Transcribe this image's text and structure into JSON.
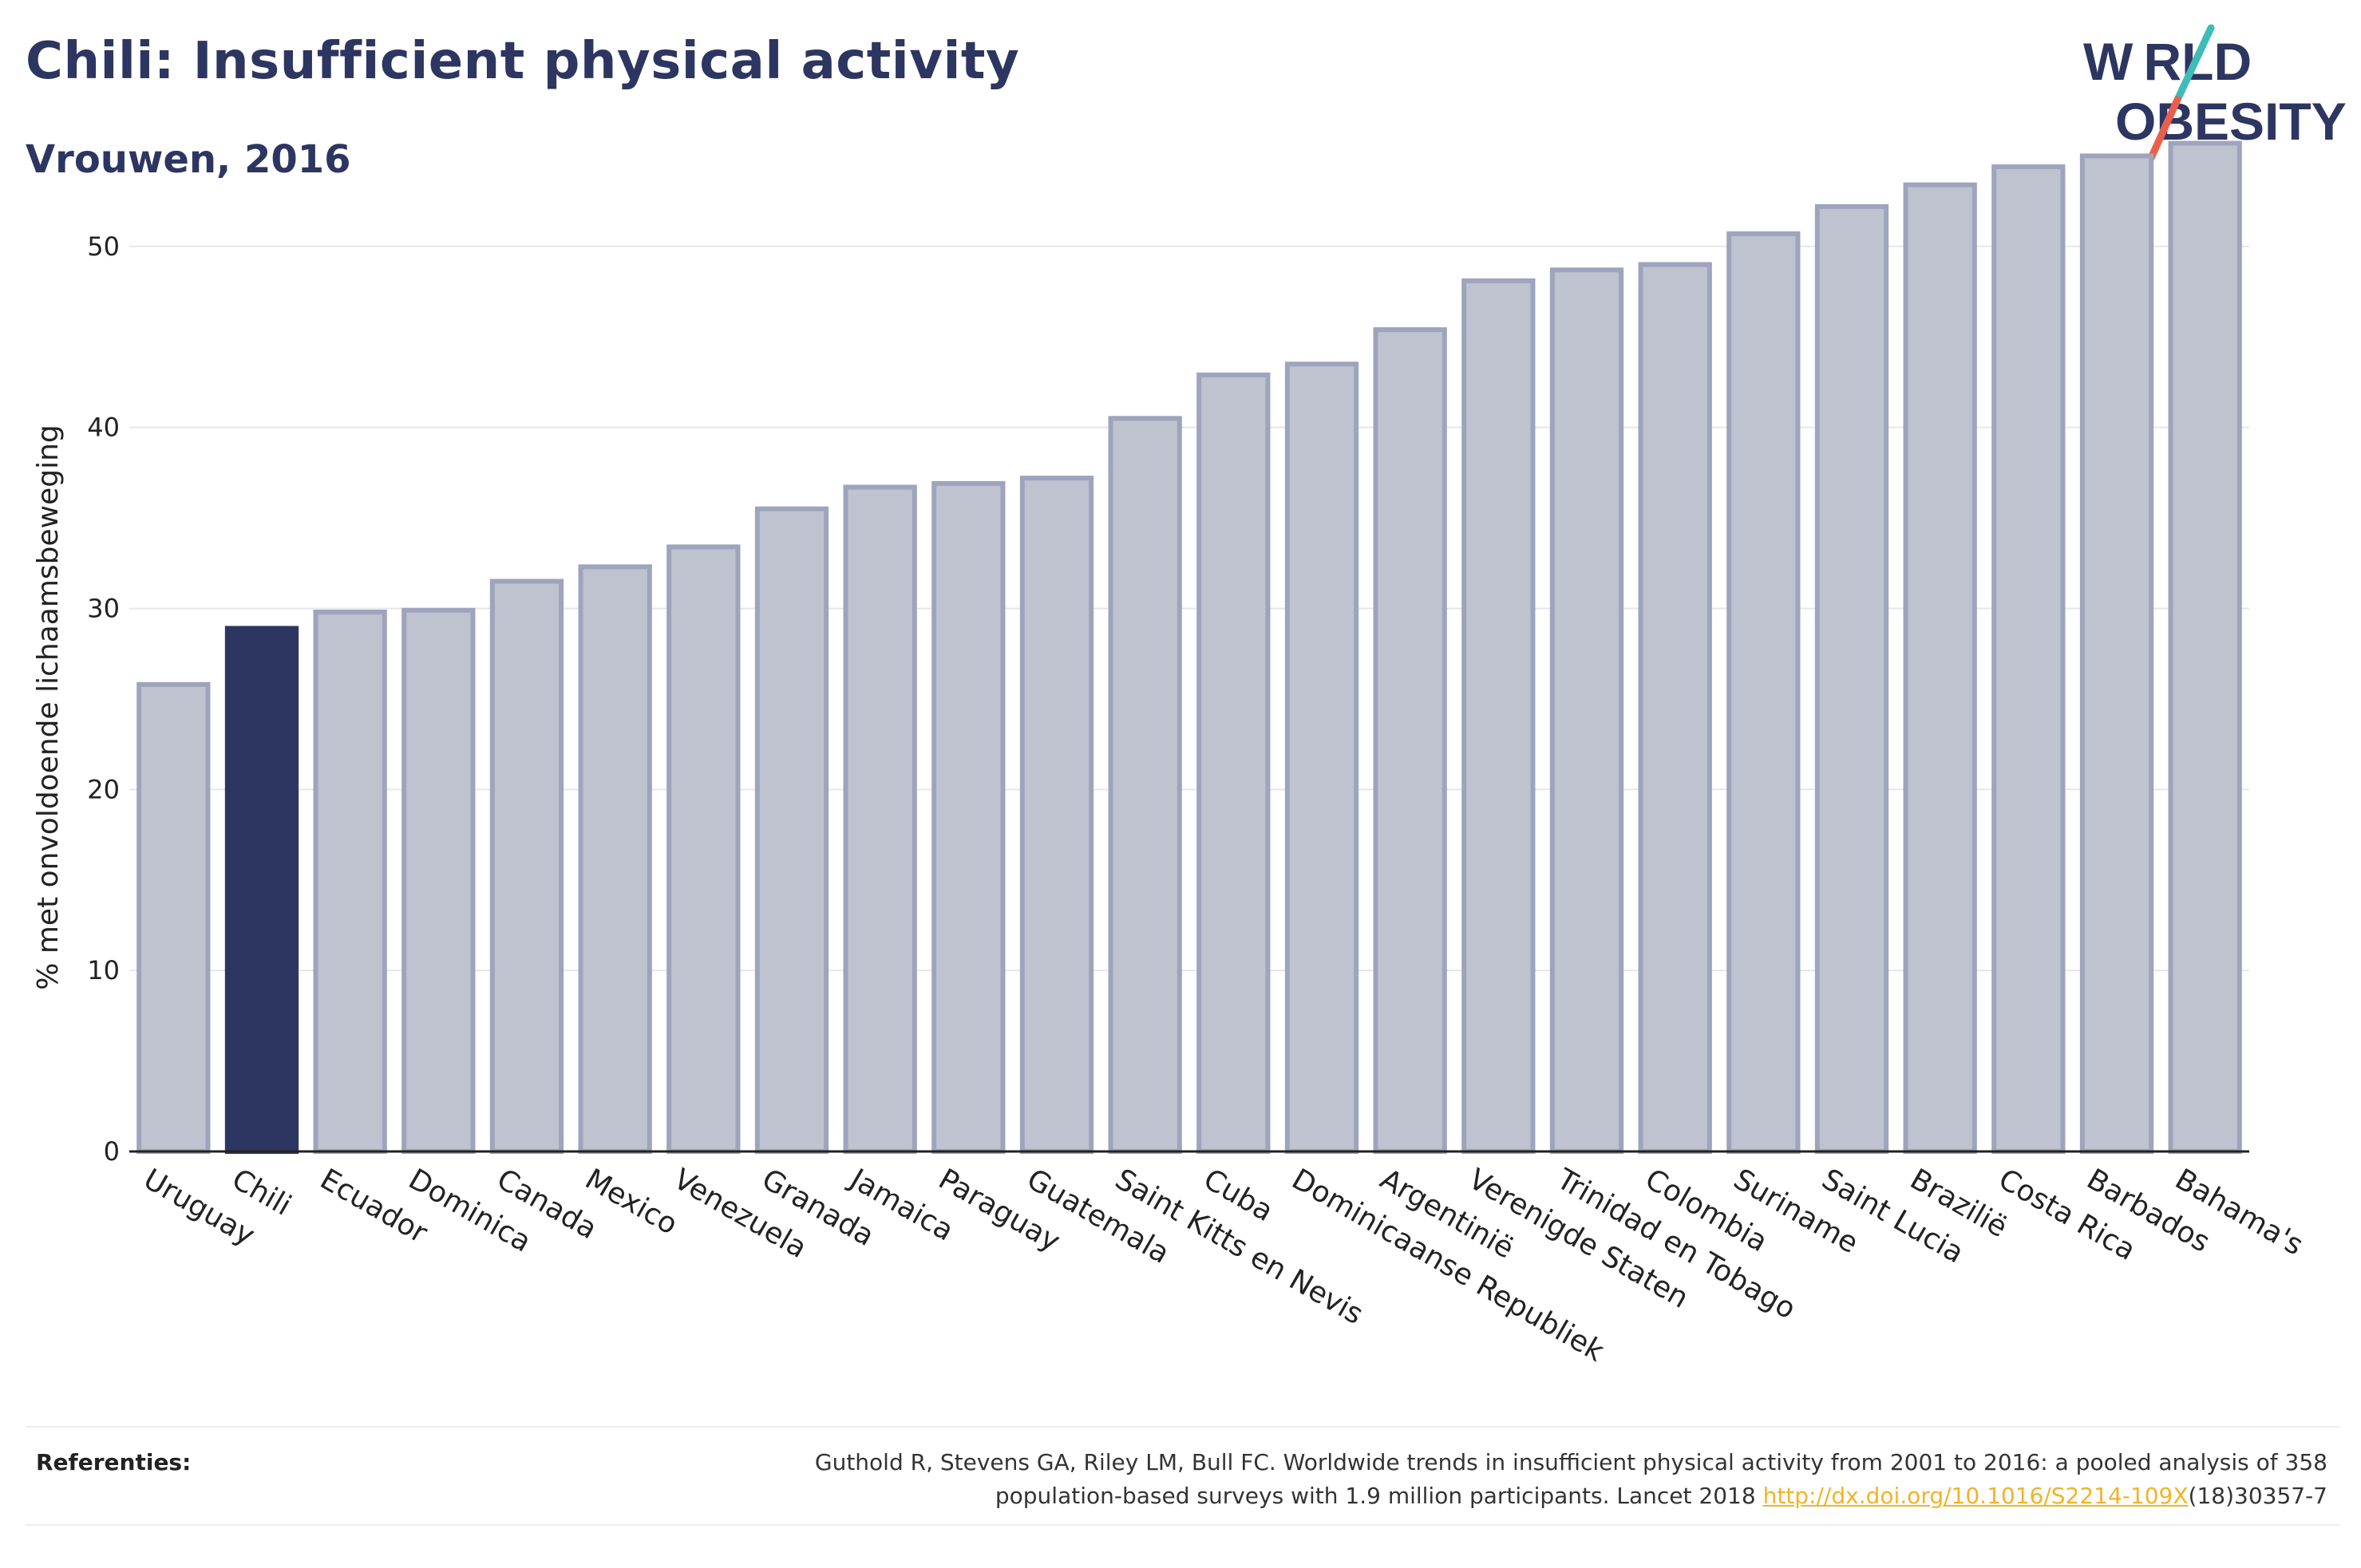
{
  "header": {
    "title": "Chili: Insufficient physical activity",
    "subtitle": "Vrouwen, 2016"
  },
  "logo": {
    "line1": "W RLD",
    "line2": "OBESITY",
    "text": "WORLD OBESITY",
    "colors": {
      "text": "#2d3561",
      "slash_top": "#3dbdb5",
      "slash_bottom": "#e8604c"
    }
  },
  "chart_data": {
    "type": "bar",
    "ylabel": "% met onvoldoende lichaamsbeweging",
    "ylim": [
      0,
      57
    ],
    "yticks": [
      0,
      10,
      20,
      30,
      40,
      50
    ],
    "grid": true,
    "highlight": "Chili",
    "colors": {
      "bar": "#bfc2cf",
      "bar_edge": "#9fa4bd",
      "highlight": "#2d3561",
      "grid": "#e6e6ec"
    },
    "categories": [
      "Uruguay",
      "Chili",
      "Ecuador",
      "Dominica",
      "Canada",
      "Mexico",
      "Venezuela",
      "Granada",
      "Jamaica",
      "Paraguay",
      "Guatemala",
      "Saint Kitts en Nevis",
      "Cuba",
      "Dominicaanse Republiek",
      "Argentinië",
      "Verenigde Staten",
      "Trinidad en Tobago",
      "Colombia",
      "Suriname",
      "Saint Lucia",
      "Brazilië",
      "Costa Rica",
      "Barbados",
      "Bahama's"
    ],
    "values": [
      25.8,
      28.9,
      29.8,
      29.9,
      31.5,
      32.3,
      33.4,
      35.5,
      36.7,
      36.9,
      37.2,
      40.5,
      42.9,
      43.5,
      45.4,
      48.1,
      48.7,
      49.0,
      50.7,
      52.2,
      53.4,
      54.4,
      55.0,
      55.7
    ]
  },
  "footer": {
    "ref_label": "Referenties:",
    "ref_text_1": "Guthold R, Stevens GA, Riley LM, Bull FC. Worldwide trends in insufficient physical activity from 2001 to 2016: a pooled analysis of 358",
    "ref_text_2": "population-based surveys with 1.9 million participants. Lancet 2018 ",
    "ref_link": "http://dx.doi.org/10.1016/S2214-109X",
    "ref_text_3": "(18)30357-7"
  }
}
